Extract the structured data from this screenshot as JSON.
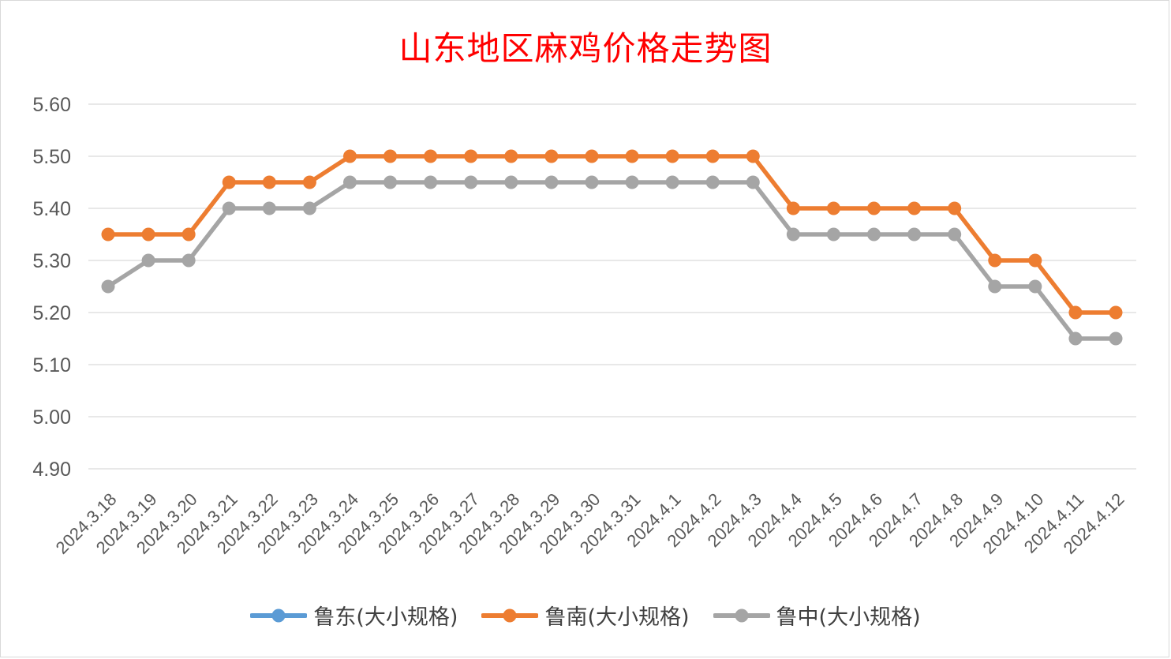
{
  "chart_data": {
    "type": "line",
    "title": "山东地区麻鸡价格走势图",
    "xlabel": "",
    "ylabel": "",
    "ylim": [
      4.9,
      5.6
    ],
    "yticks": [
      "5.60",
      "5.50",
      "5.40",
      "5.30",
      "5.20",
      "5.10",
      "5.00",
      "4.90"
    ],
    "grid": "horizontal",
    "legend_position": "bottom",
    "categories": [
      "2024.3.18",
      "2024.3.19",
      "2024.3.20",
      "2024.3.21",
      "2024.3.22",
      "2024.3.23",
      "2024.3.24",
      "2024.3.25",
      "2024.3.26",
      "2024.3.27",
      "2024.3.28",
      "2024.3.29",
      "2024.3.30",
      "2024.3.31",
      "2024.4.1",
      "2024.4.2",
      "2024.4.3",
      "2024.4.4",
      "2024.4.5",
      "2024.4.6",
      "2024.4.7",
      "2024.4.8",
      "2024.4.9",
      "2024.4.10",
      "2024.4.11",
      "2024.4.12"
    ],
    "series": [
      {
        "name": "鲁东(大小规格)",
        "color": "#5b9bd5",
        "values": [
          null,
          null,
          null,
          null,
          null,
          null,
          null,
          null,
          null,
          null,
          null,
          null,
          null,
          null,
          null,
          null,
          null,
          null,
          null,
          null,
          null,
          null,
          null,
          null,
          null,
          null
        ]
      },
      {
        "name": "鲁南(大小规格)",
        "color": "#ed7d31",
        "values": [
          5.35,
          5.35,
          5.35,
          5.45,
          5.45,
          5.45,
          5.5,
          5.5,
          5.5,
          5.5,
          5.5,
          5.5,
          5.5,
          5.5,
          5.5,
          5.5,
          5.5,
          5.4,
          5.4,
          5.4,
          5.4,
          5.4,
          5.3,
          5.3,
          5.2,
          5.2
        ]
      },
      {
        "name": "鲁中(大小规格)",
        "color": "#a5a5a5",
        "values": [
          5.25,
          5.3,
          5.3,
          5.4,
          5.4,
          5.4,
          5.45,
          5.45,
          5.45,
          5.45,
          5.45,
          5.45,
          5.45,
          5.45,
          5.45,
          5.45,
          5.45,
          5.35,
          5.35,
          5.35,
          5.35,
          5.35,
          5.25,
          5.25,
          5.15,
          5.15
        ]
      }
    ]
  }
}
